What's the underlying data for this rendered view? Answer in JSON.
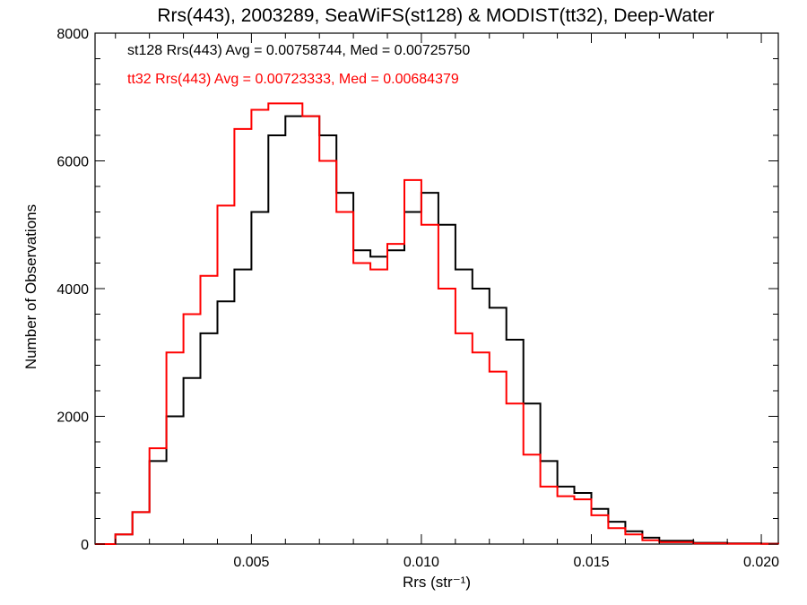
{
  "chart_data": {
    "type": "line",
    "step": true,
    "title": "Rrs(443), 2003289, SeaWiFS(st128) & MODIST(tt32), Deep-Water",
    "xlabel": "Rrs (str⁻¹)",
    "ylabel": "Number of Observations",
    "xlim": [
      0.0004,
      0.0205
    ],
    "ylim": [
      0,
      8000
    ],
    "x_ticks": [
      0.005,
      0.01,
      0.015,
      0.02
    ],
    "x_tick_labels": [
      "0.005",
      "0.010",
      "0.015",
      "0.020"
    ],
    "y_ticks": [
      0,
      2000,
      4000,
      6000,
      8000
    ],
    "y_tick_labels": [
      "0",
      "2000",
      "4000",
      "6000",
      "8000"
    ],
    "grid": false,
    "annotations": [
      {
        "text": "st128 Rrs(443) Avg = 0.00758744, Med = 0.00725750",
        "color": "#000000"
      },
      {
        "text": "tt32 Rrs(443) Avg = 0.00723333, Med = 0.00684379",
        "color": "#ff0000"
      }
    ],
    "series": [
      {
        "name": "st128",
        "color": "#000000",
        "x": [
          0.0004,
          0.001,
          0.0015,
          0.002,
          0.0025,
          0.003,
          0.0035,
          0.004,
          0.0045,
          0.005,
          0.0055,
          0.006,
          0.0065,
          0.007,
          0.0075,
          0.008,
          0.0085,
          0.009,
          0.0095,
          0.01,
          0.0105,
          0.011,
          0.0115,
          0.012,
          0.0125,
          0.013,
          0.0135,
          0.014,
          0.0145,
          0.015,
          0.0155,
          0.016,
          0.0165,
          0.017,
          0.018,
          0.019,
          0.02,
          0.0205
        ],
        "y": [
          0,
          150,
          500,
          1300,
          2000,
          2600,
          3300,
          3800,
          4300,
          5200,
          6400,
          6700,
          6700,
          6400,
          5500,
          4600,
          4500,
          4600,
          5200,
          5500,
          5000,
          4300,
          4000,
          3700,
          3200,
          2200,
          1300,
          900,
          800,
          550,
          350,
          200,
          100,
          50,
          20,
          10,
          5,
          0
        ]
      },
      {
        "name": "tt32",
        "color": "#ff0000",
        "x": [
          0.0004,
          0.001,
          0.0015,
          0.002,
          0.0025,
          0.003,
          0.0035,
          0.004,
          0.0045,
          0.005,
          0.0055,
          0.006,
          0.0065,
          0.007,
          0.0075,
          0.008,
          0.0085,
          0.009,
          0.0095,
          0.01,
          0.0105,
          0.011,
          0.0115,
          0.012,
          0.0125,
          0.013,
          0.0135,
          0.014,
          0.0145,
          0.015,
          0.0155,
          0.016,
          0.0165,
          0.017,
          0.018,
          0.019,
          0.02,
          0.0205
        ],
        "y": [
          0,
          150,
          500,
          1500,
          3000,
          3600,
          4200,
          5300,
          6500,
          6800,
          6900,
          6900,
          6700,
          6000,
          5200,
          4400,
          4300,
          4700,
          5700,
          5000,
          4000,
          3300,
          3000,
          2700,
          2200,
          1400,
          900,
          750,
          700,
          450,
          250,
          150,
          60,
          30,
          10,
          5,
          3,
          0
        ]
      }
    ]
  }
}
